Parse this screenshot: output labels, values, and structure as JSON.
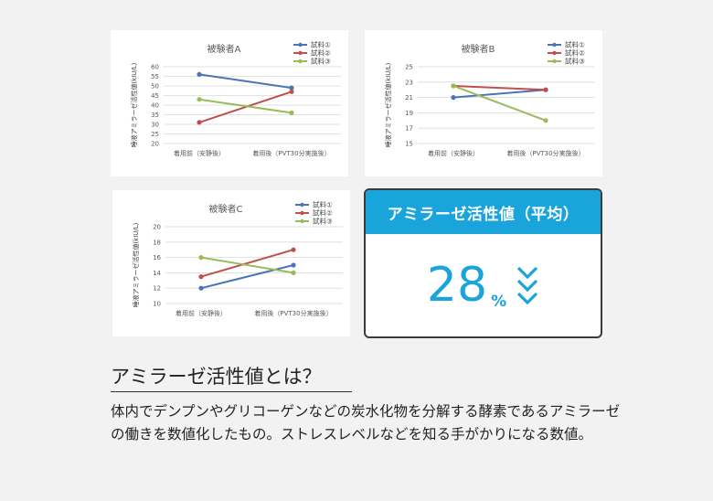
{
  "chart_data": [
    {
      "type": "line",
      "title": "被験者A",
      "ylabel": "唾液アミラーゼ活性値(kIU/L)",
      "xlabel": "",
      "categories": [
        "着用前（安静後）",
        "着用後（PVT30分実施後）"
      ],
      "ylim": [
        20,
        60
      ],
      "yticks": [
        20,
        25,
        30,
        35,
        40,
        45,
        50,
        55,
        60
      ],
      "grid": true,
      "legend": "top-right",
      "series": [
        {
          "name": "試料①",
          "values": [
            56,
            49
          ],
          "color": "#4a74b8"
        },
        {
          "name": "試料②",
          "values": [
            31,
            47
          ],
          "color": "#c0504d"
        },
        {
          "name": "試料③",
          "values": [
            43,
            36
          ],
          "color": "#9bbb59"
        }
      ]
    },
    {
      "type": "line",
      "title": "被験者B",
      "ylabel": "唾液アミラーゼ活性値(kIU/L)",
      "xlabel": "",
      "categories": [
        "着用前（安静後）",
        "着用後（PVT30分実施後）"
      ],
      "ylim": [
        15,
        25
      ],
      "yticks": [
        15,
        17,
        19,
        21,
        23,
        25
      ],
      "grid": true,
      "legend": "top-right",
      "series": [
        {
          "name": "試料①",
          "values": [
            21,
            22
          ],
          "color": "#4a74b8"
        },
        {
          "name": "試料②",
          "values": [
            22.5,
            22
          ],
          "color": "#c0504d"
        },
        {
          "name": "試料③",
          "values": [
            22.5,
            18
          ],
          "color": "#9bbb59"
        }
      ]
    },
    {
      "type": "line",
      "title": "被験者C",
      "ylabel": "唾液アミラーゼ活性値(kIU/L)",
      "xlabel": "",
      "categories": [
        "着用前（安静後）",
        "着用後（PVT30分実施後）"
      ],
      "ylim": [
        10,
        20
      ],
      "yticks": [
        10,
        12,
        14,
        16,
        18,
        20
      ],
      "grid": true,
      "legend": "top-right",
      "series": [
        {
          "name": "試料①",
          "values": [
            12,
            15
          ],
          "color": "#4a74b8"
        },
        {
          "name": "試料②",
          "values": [
            13.5,
            17
          ],
          "color": "#c0504d"
        },
        {
          "name": "試料③",
          "values": [
            16,
            14
          ],
          "color": "#9bbb59"
        }
      ]
    }
  ],
  "summary": {
    "title": "アミラーゼ活性値（平均）",
    "value": "28",
    "unit": "%",
    "accent_color": "#1aa4dc",
    "icon": "double-chevron-down-icon"
  },
  "explanation": {
    "heading": "アミラーゼ活性値とは？",
    "body": "体内でデンプンやグリコーゲンなどの炭水化物を分解する酵素であるアミラーゼの働きを数値化したもの。ストレスレベルなどを知る手がかりになる数値。"
  }
}
